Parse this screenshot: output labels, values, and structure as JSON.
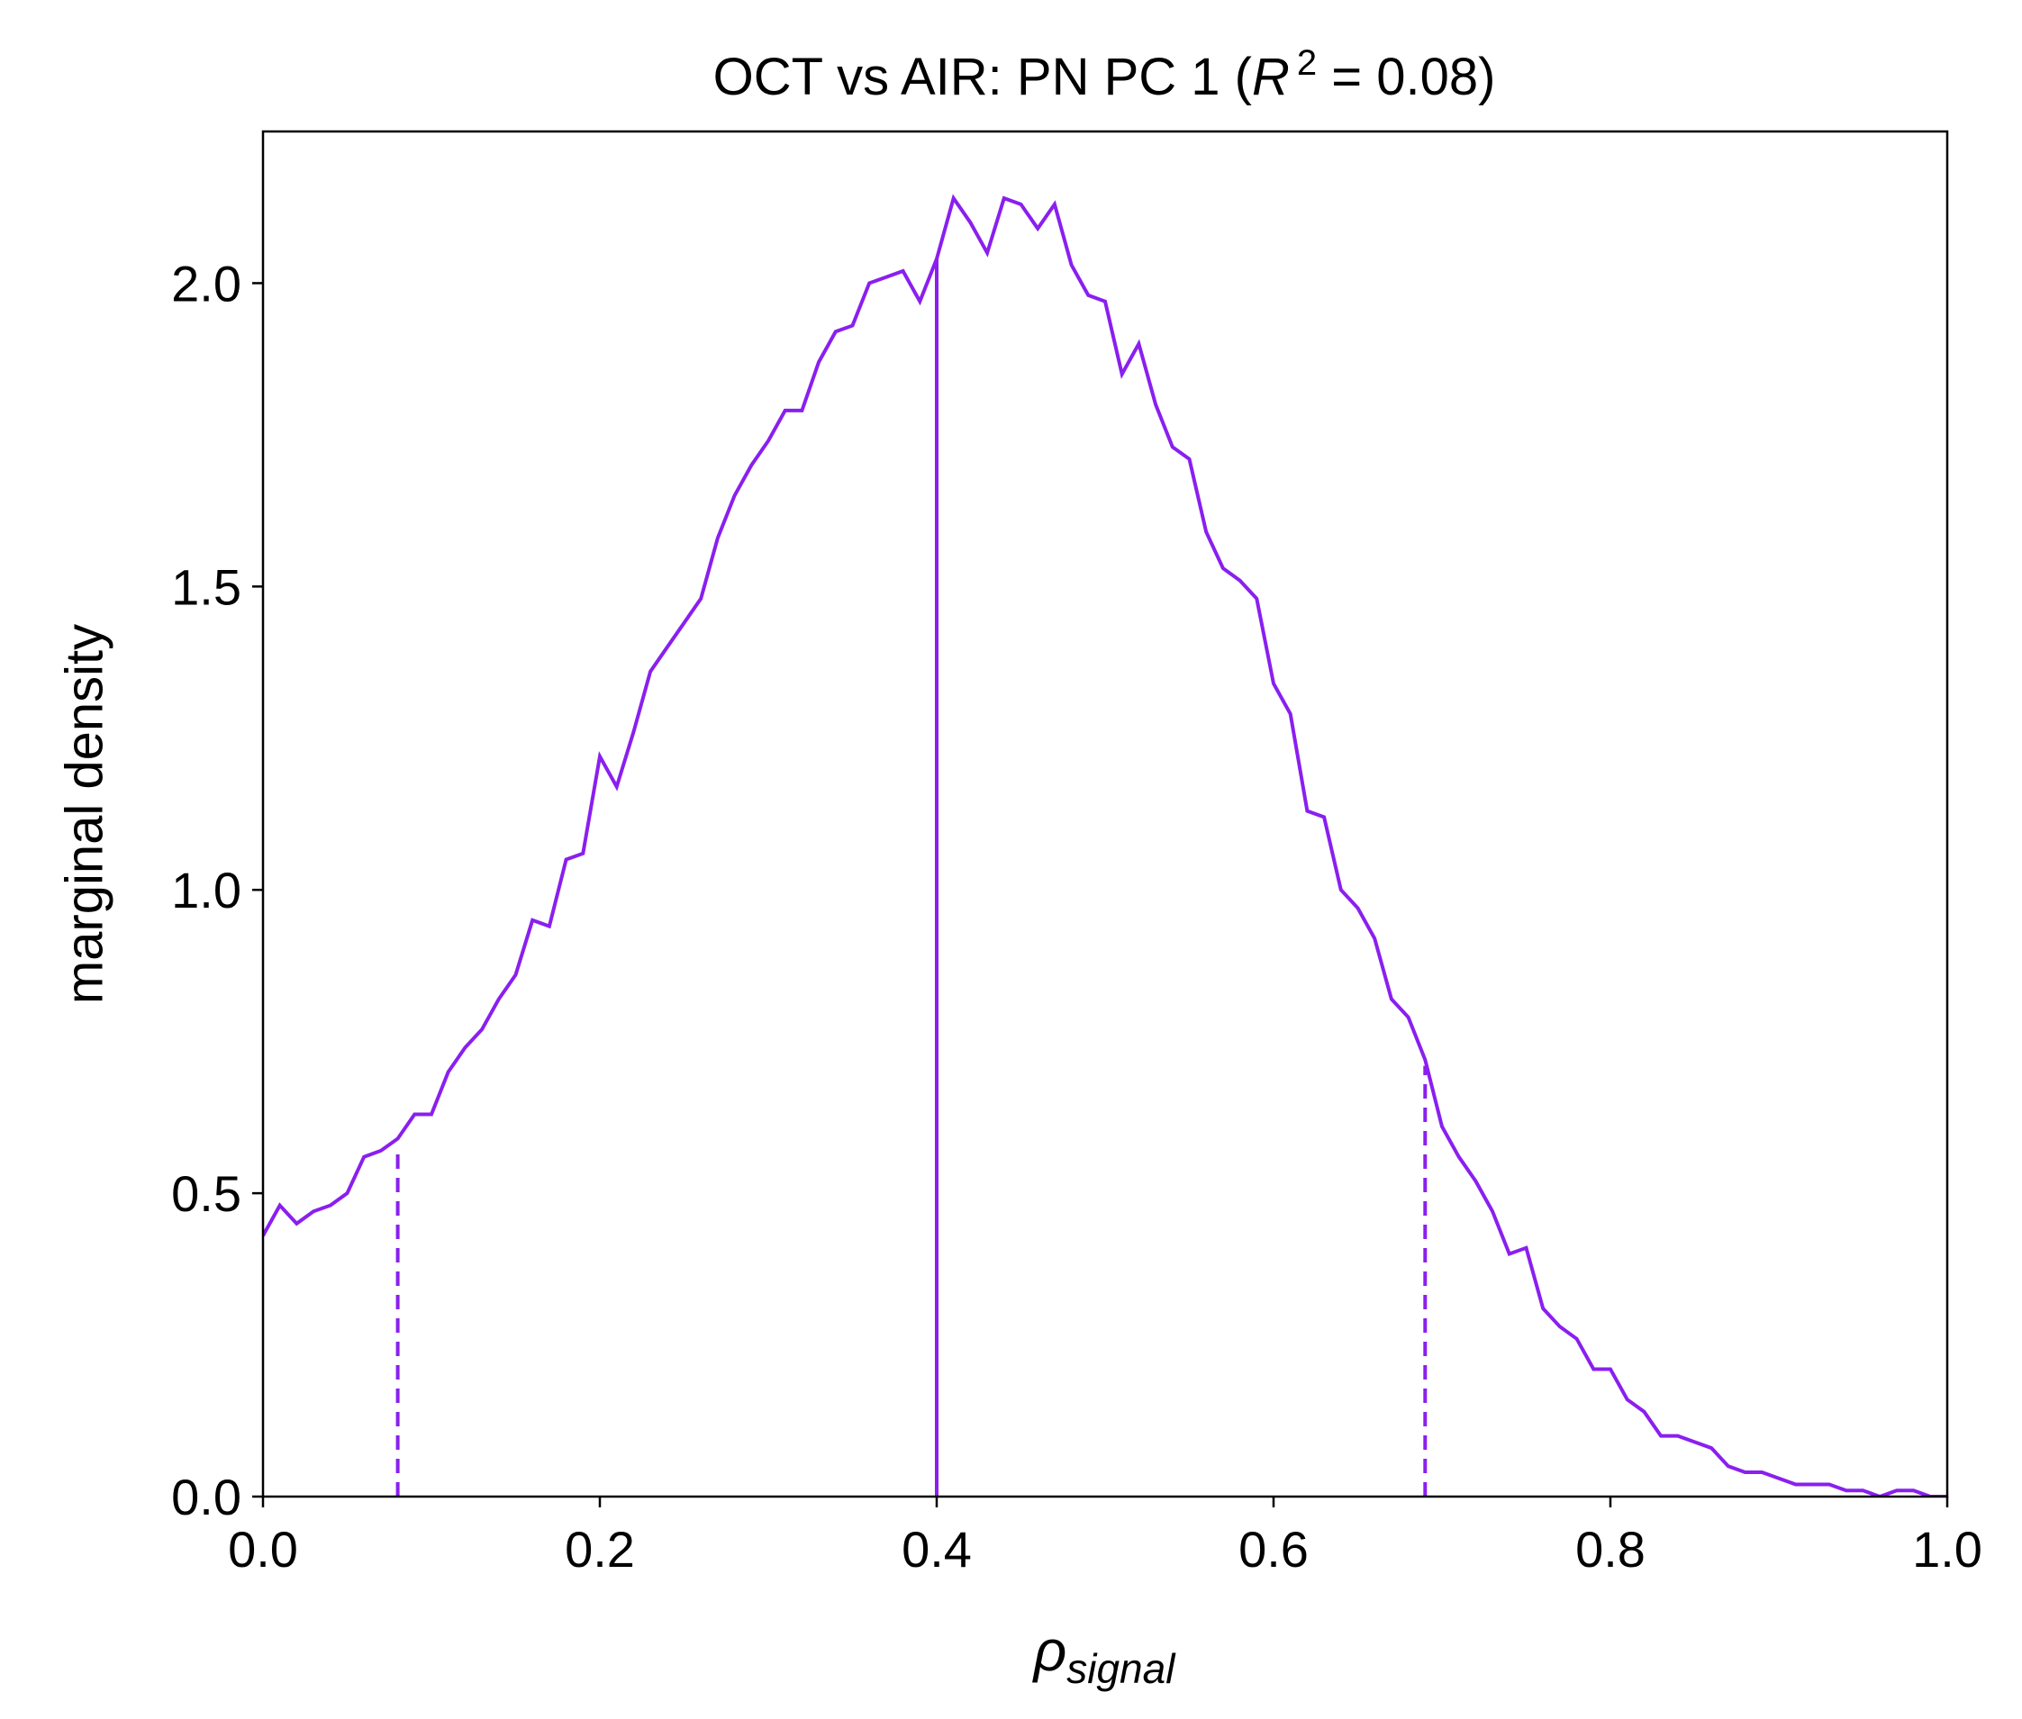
{
  "chart_data": {
    "type": "line",
    "title": {
      "prefix": "OCT vs AIR: PN PC 1 (",
      "r_symbol": "R",
      "r_exponent": "2",
      "suffix": " = 0.08)"
    },
    "xlabel": {
      "main": "ρ",
      "subscript": "signal"
    },
    "ylabel": "marginal density",
    "xlim": [
      0,
      1
    ],
    "ylim": [
      0,
      2.25
    ],
    "x_ticks": [
      {
        "value": 0.0,
        "label": "0.0"
      },
      {
        "value": 0.2,
        "label": "0.2"
      },
      {
        "value": 0.4,
        "label": "0.4"
      },
      {
        "value": 0.6,
        "label": "0.6"
      },
      {
        "value": 0.8,
        "label": "0.8"
      },
      {
        "value": 1.0,
        "label": "1.0"
      }
    ],
    "y_ticks": [
      {
        "value": 0.0,
        "label": "0.0"
      },
      {
        "value": 0.5,
        "label": "0.5"
      },
      {
        "value": 1.0,
        "label": "1.0"
      },
      {
        "value": 1.5,
        "label": "1.5"
      },
      {
        "value": 2.0,
        "label": "2.0"
      }
    ],
    "grid": false,
    "color": "#8a1fef",
    "series": [
      {
        "x": [
          0.0,
          0.01,
          0.02,
          0.03,
          0.04,
          0.05,
          0.06,
          0.07,
          0.08,
          0.09,
          0.1,
          0.11,
          0.12,
          0.13,
          0.14,
          0.15,
          0.16,
          0.17,
          0.18,
          0.19,
          0.2,
          0.21,
          0.22,
          0.23,
          0.24,
          0.25,
          0.26,
          0.27,
          0.28,
          0.29,
          0.3,
          0.31,
          0.32,
          0.33,
          0.34,
          0.35,
          0.36,
          0.37,
          0.38,
          0.39,
          0.4,
          0.41,
          0.42,
          0.43,
          0.44,
          0.45,
          0.46,
          0.47,
          0.48,
          0.49,
          0.5,
          0.51,
          0.52,
          0.53,
          0.54,
          0.55,
          0.56,
          0.57,
          0.58,
          0.59,
          0.6,
          0.61,
          0.62,
          0.63,
          0.64,
          0.65,
          0.66,
          0.67,
          0.68,
          0.69,
          0.7,
          0.71,
          0.72,
          0.73,
          0.74,
          0.75,
          0.76,
          0.77,
          0.78,
          0.79,
          0.8,
          0.81,
          0.82,
          0.83,
          0.84,
          0.85,
          0.86,
          0.87,
          0.88,
          0.89,
          0.9,
          0.91,
          0.92,
          0.93,
          0.94,
          0.95,
          0.96,
          0.97,
          0.98,
          0.99,
          1.0
        ],
        "y": [
          0.43,
          0.48,
          0.45,
          0.47,
          0.48,
          0.5,
          0.56,
          0.57,
          0.59,
          0.63,
          0.63,
          0.7,
          0.74,
          0.77,
          0.82,
          0.86,
          0.95,
          0.94,
          1.05,
          1.06,
          1.22,
          1.17,
          1.26,
          1.36,
          1.4,
          1.44,
          1.48,
          1.58,
          1.65,
          1.7,
          1.74,
          1.79,
          1.79,
          1.87,
          1.92,
          1.93,
          2.0,
          2.01,
          2.02,
          1.97,
          2.04,
          2.14,
          2.1,
          2.05,
          2.14,
          2.13,
          2.09,
          2.13,
          2.03,
          1.98,
          1.97,
          1.85,
          1.9,
          1.8,
          1.73,
          1.71,
          1.59,
          1.53,
          1.51,
          1.48,
          1.34,
          1.29,
          1.13,
          1.12,
          1.0,
          0.97,
          0.92,
          0.82,
          0.79,
          0.72,
          0.61,
          0.56,
          0.52,
          0.47,
          0.4,
          0.41,
          0.31,
          0.28,
          0.26,
          0.21,
          0.21,
          0.16,
          0.14,
          0.1,
          0.1,
          0.09,
          0.08,
          0.05,
          0.04,
          0.04,
          0.03,
          0.02,
          0.02,
          0.02,
          0.01,
          0.01,
          0.0,
          0.01,
          0.01,
          0.0,
          0.0
        ]
      }
    ],
    "vlines": [
      {
        "x": 0.08,
        "style": "dashed",
        "ymax": 0.57
      },
      {
        "x": 0.4,
        "style": "solid",
        "ymax": 2.04
      },
      {
        "x": 0.69,
        "style": "dashed",
        "ymax": 0.71
      }
    ]
  }
}
